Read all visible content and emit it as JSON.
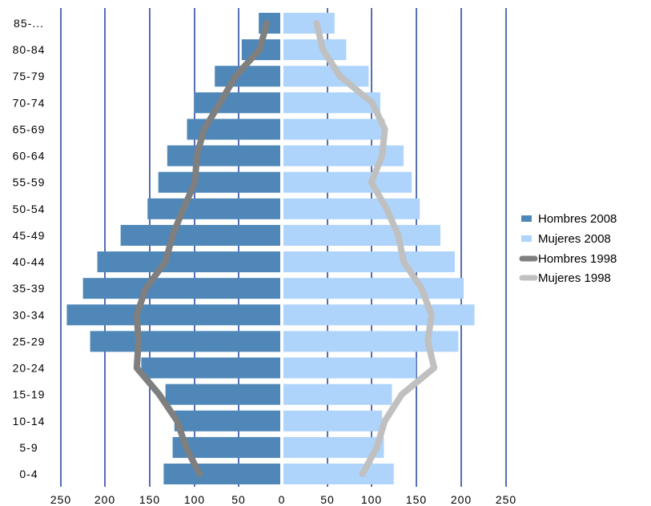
{
  "chart_data": {
    "type": "bar",
    "orientation": "horizontal-pyramid",
    "categories": [
      "0-4",
      "5-9",
      "10-14",
      "15-19",
      "20-24",
      "25-29",
      "30-34",
      "35-39",
      "40-44",
      "45-49",
      "50-54",
      "55-59",
      "60-64",
      "65-69",
      "70-74",
      "75-79",
      "80-84",
      "85-..."
    ],
    "x_ticks": [
      "250",
      "200",
      "150",
      "100",
      "50",
      "0",
      "50",
      "100",
      "150",
      "200",
      "250"
    ],
    "xlim": [
      -250,
      250
    ],
    "grid": "vertical",
    "legend_position": "right",
    "series": [
      {
        "name": "Hombres 2008",
        "kind": "bar",
        "side": "left",
        "color": "#4f87b8",
        "values": [
          130,
          120,
          118,
          128,
          155,
          212,
          238,
          220,
          204,
          178,
          148,
          136,
          126,
          104,
          96,
          73,
          43,
          24
        ]
      },
      {
        "name": "Mujeres 2008",
        "kind": "bar",
        "side": "right",
        "color": "#aed4fb",
        "values": [
          123,
          112,
          110,
          121,
          148,
          195,
          213,
          201,
          191,
          175,
          152,
          143,
          134,
          113,
          108,
          95,
          70,
          57
        ]
      },
      {
        "name": "Hombres 1998",
        "kind": "line",
        "side": "left",
        "color": "#7f7f7f",
        "values": [
          90,
          105,
          115,
          135,
          160,
          158,
          160,
          150,
          128,
          120,
          108,
          95,
          93,
          85,
          67,
          50,
          23,
          15
        ]
      },
      {
        "name": "Mujeres 1998",
        "kind": "line",
        "side": "right",
        "color": "#c0c0c0",
        "values": [
          88,
          104,
          113,
          132,
          168,
          161,
          165,
          154,
          134,
          128,
          115,
          98,
          110,
          113,
          99,
          63,
          44,
          37
        ]
      }
    ]
  }
}
